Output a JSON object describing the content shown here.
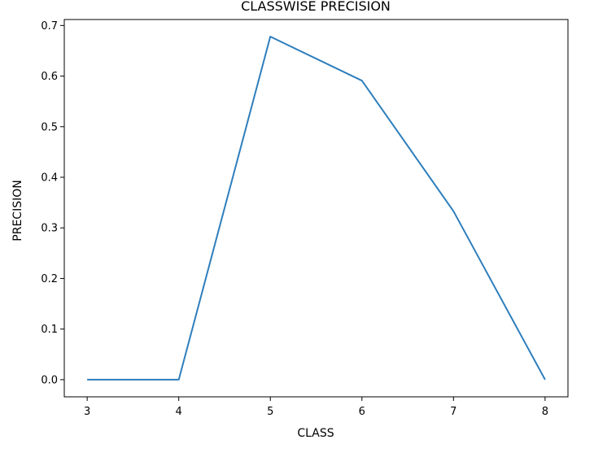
{
  "chart_data": {
    "type": "line",
    "title": "CLASSWISE PRECISION",
    "xlabel": "CLASS",
    "ylabel": "PRECISION",
    "x": [
      3,
      4,
      5,
      6,
      7,
      8
    ],
    "series": [
      {
        "values": [
          0.0,
          0.0,
          0.678,
          0.591,
          0.333,
          0.0
        ],
        "color": "#2e7ebc"
      }
    ],
    "xticks": [
      "3",
      "4",
      "5",
      "6",
      "7",
      "8"
    ],
    "yticks": [
      "0.0",
      "0.1",
      "0.2",
      "0.3",
      "0.4",
      "0.5",
      "0.6",
      "0.7"
    ],
    "xlim": [
      2.75,
      8.25
    ],
    "ylim": [
      -0.0339,
      0.7118
    ],
    "grid": false,
    "legend": "none"
  }
}
